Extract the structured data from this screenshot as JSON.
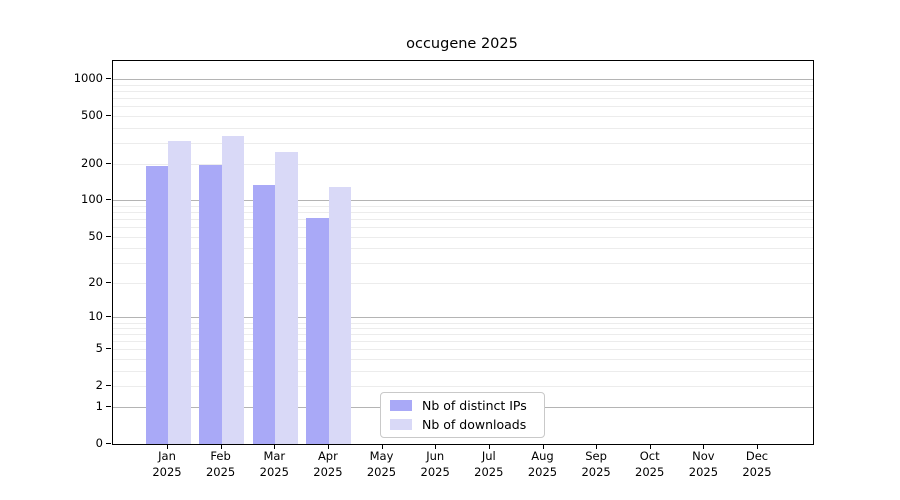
{
  "title": "occugene 2025",
  "chart_data": {
    "type": "bar",
    "scale": "log1p",
    "title": "occugene 2025",
    "xlabel": "",
    "ylabel": "",
    "categories": [
      "Jan",
      "Feb",
      "Mar",
      "Apr",
      "May",
      "Jun",
      "Jul",
      "Aug",
      "Sep",
      "Oct",
      "Nov",
      "Dec"
    ],
    "year_label": "2025",
    "series": [
      {
        "name": "Nb of distinct IPs",
        "color": "#a9a9f7",
        "values": [
          192,
          197,
          135,
          71,
          null,
          null,
          null,
          null,
          null,
          null,
          null,
          null
        ]
      },
      {
        "name": "Nb of downloads",
        "color": "#d9d9f7",
        "values": [
          308,
          339,
          250,
          130,
          null,
          null,
          null,
          null,
          null,
          null,
          null,
          null
        ]
      }
    ],
    "y_ticks": [
      0,
      1,
      2,
      5,
      10,
      20,
      50,
      100,
      200,
      500,
      1000
    ],
    "ylim": [
      0,
      1415
    ],
    "grid": {
      "major_at": [
        1,
        10,
        100,
        1000
      ],
      "minor_gridlines": true
    },
    "legend_position": "lower center"
  },
  "colors": {
    "major_grid": "#b4b4b4",
    "minor_grid": "#ececec",
    "axis": "#000000",
    "background": "#ffffff"
  }
}
